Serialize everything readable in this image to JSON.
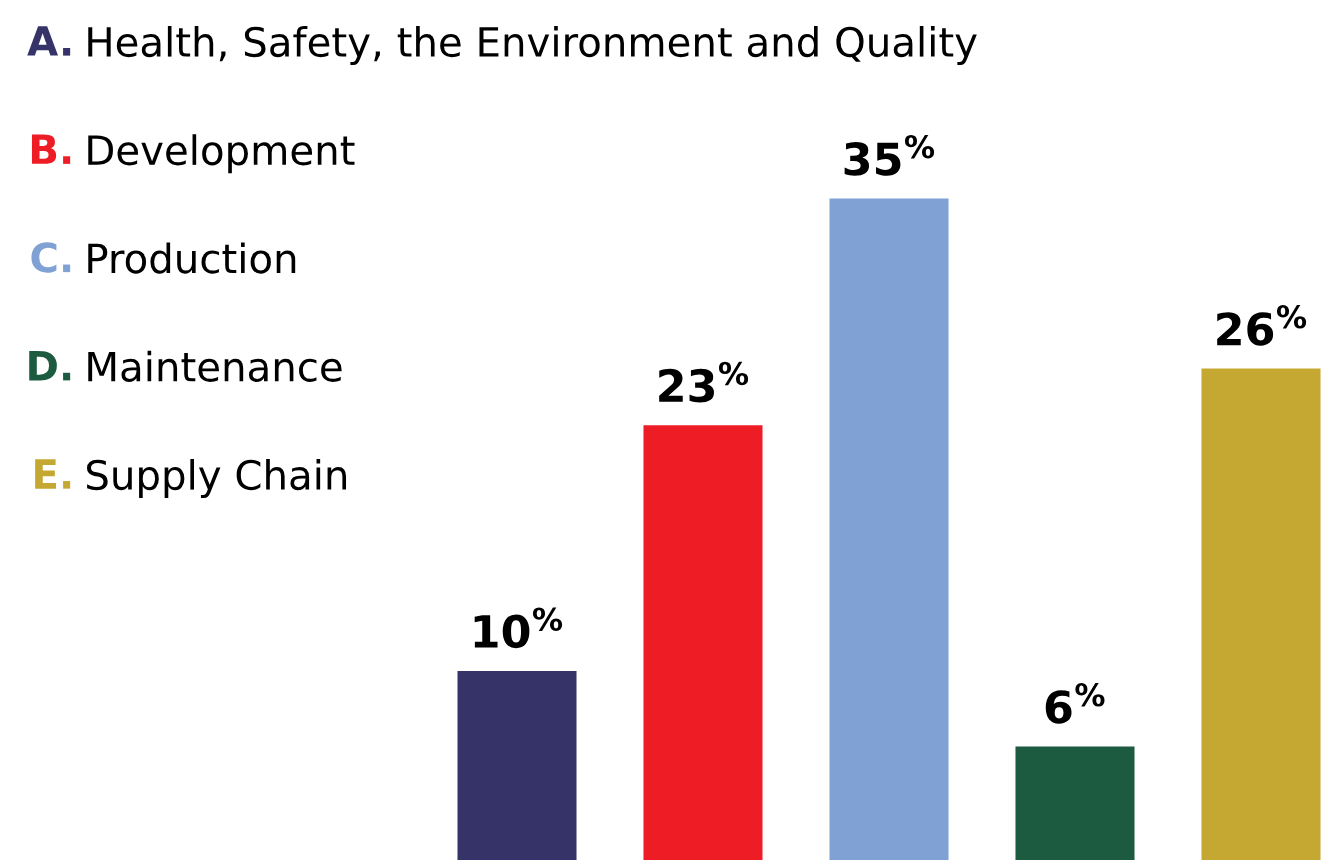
{
  "chart_data": {
    "type": "bar",
    "stacked": true,
    "categories": [
      null,
      null,
      null,
      null,
      null
    ],
    "series": [
      {
        "name": "A. Health, Safety, the Environment and Quality",
        "color": "#363369",
        "values": [
          10,
          null,
          null,
          null,
          null
        ],
        "value_labels": [
          "10$^{%}$",
          null,
          null,
          null,
          null
        ]
      },
      {
        "name": "B. Development",
        "color": "#ee1d25",
        "values": [
          null,
          23,
          null,
          null,
          null
        ],
        "value_labels": [
          null,
          "23$^{%}$",
          null,
          null,
          null
        ]
      },
      {
        "name": "C. Production",
        "color": "#80a1d4",
        "values": [
          null,
          null,
          35,
          null,
          null
        ],
        "value_labels": [
          null,
          null,
          "35$^{%}$",
          null,
          null
        ]
      },
      {
        "name": "D. Maintenance",
        "color": "#1d5b41",
        "values": [
          null,
          null,
          null,
          6,
          null
        ],
        "value_labels": [
          null,
          null,
          null,
          "6$^{%}$",
          null
        ]
      },
      {
        "name": "E. Supply Chain",
        "color": "#c5a831",
        "values": [
          null,
          null,
          null,
          null,
          26
        ],
        "value_labels": [
          null,
          null,
          null,
          null,
          "26$^{%}$"
        ]
      }
    ],
    "legend": "top left",
    "tick_labels": false
  }
}
